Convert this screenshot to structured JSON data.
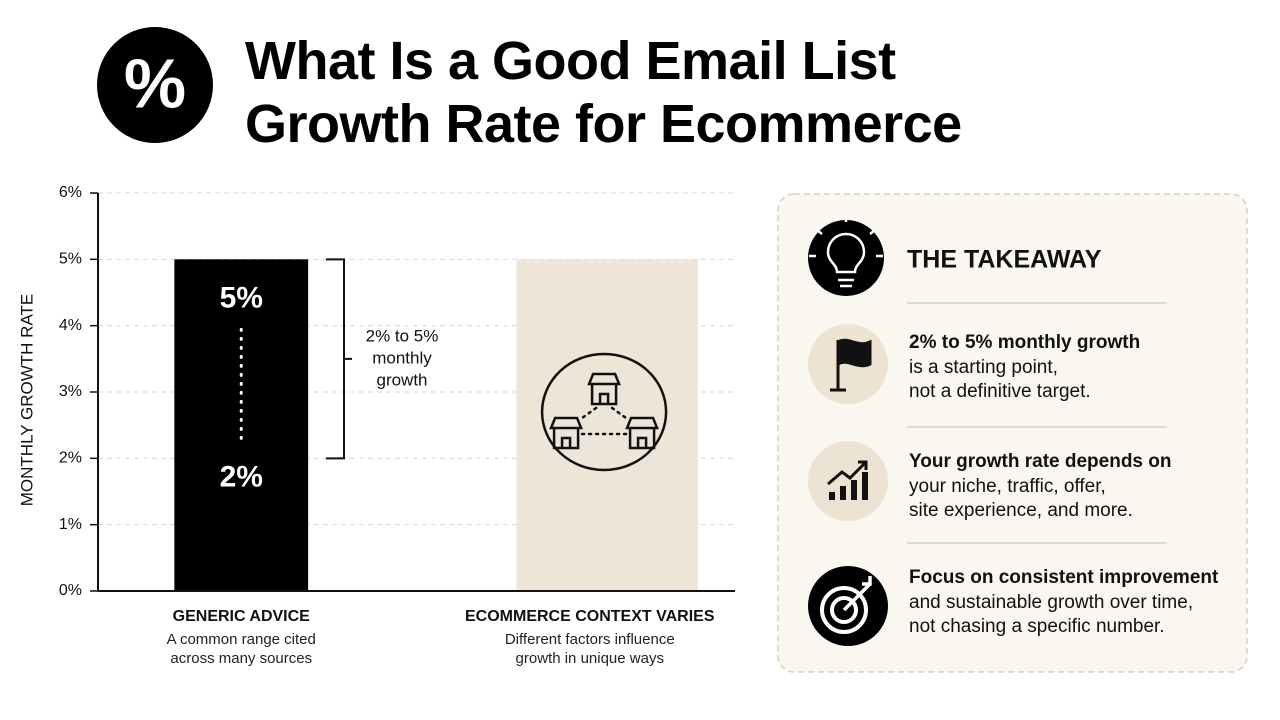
{
  "header": {
    "symbol": "%"
  },
  "chart_data": {
    "type": "bar",
    "title": "What Is a Good Email List Growth Rate for Ecommerce",
    "y_label": "MONTHLY GROWTH RATE",
    "categories": [
      "GENERIC ADVICE",
      "ECOMMERCE CONTEXT VARIES"
    ],
    "category_notes": [
      [
        "A common range cited",
        "across many sources"
      ],
      [
        "Different factors influence",
        "growth in unique ways"
      ]
    ],
    "values": [
      5,
      5
    ],
    "colors": [
      "#000000",
      "#ede6d8"
    ],
    "ylim": [
      0,
      6
    ],
    "yticks": [
      {
        "value": 0,
        "label": "0%"
      },
      {
        "value": 1,
        "label": "1%"
      },
      {
        "value": 2,
        "label": "2%"
      },
      {
        "value": 3,
        "label": "3%"
      },
      {
        "value": 4,
        "label": "4%"
      },
      {
        "value": 5,
        "label": "5%"
      },
      {
        "value": 6,
        "label": "6%"
      }
    ],
    "grid": true,
    "range": {
      "values": [
        2,
        5
      ],
      "labels": [
        "2%",
        "5%"
      ],
      "text": [
        "2% to 5%",
        "monthly",
        "growth"
      ]
    }
  },
  "takeaway": {
    "title": "THE TAKEAWAY",
    "items": [
      {
        "heading": "2% to 5% monthly growth",
        "lines": [
          "is a starting point,",
          "not a definitive target."
        ]
      },
      {
        "heading": "Your growth rate depends on",
        "lines": [
          "your niche, traffic, offer,",
          "site experience, and more."
        ]
      },
      {
        "heading": "Focus on consistent improvement",
        "lines": [
          "and sustainable growth over time,",
          "not chasing a specific number."
        ]
      }
    ]
  }
}
